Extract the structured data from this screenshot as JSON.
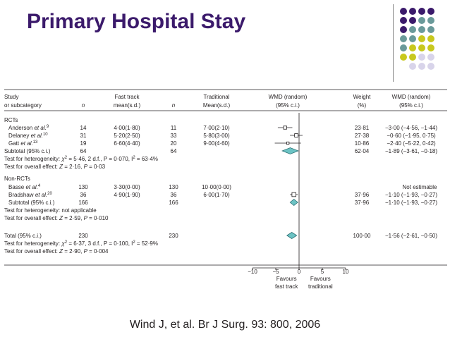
{
  "slide": {
    "title": "Primary Hospital Stay",
    "citation": "Wind J, et al.  Br J Surg.  93: 800, 2006"
  },
  "colors": {
    "title": "#3b1a6b",
    "dot_purple": "#3b1a6b",
    "dot_teal": "#6a9a9a",
    "dot_yellow": "#c8c81e",
    "dot_lavender": "#d8d4ea",
    "diamond_fill": "#6cc3c4",
    "diamond_stroke": "#2a6f73"
  },
  "decor_dots": [
    [
      "purple",
      "purple",
      "purple",
      "purple"
    ],
    [
      "purple",
      "purple",
      "teal",
      "teal"
    ],
    [
      "purple",
      "teal",
      "teal",
      "teal"
    ],
    [
      "teal",
      "teal",
      "yellow",
      "yellow"
    ],
    [
      "teal",
      "yellow",
      "yellow",
      "yellow"
    ],
    [
      "yellow",
      "yellow",
      "lavender",
      "lavender"
    ],
    [
      "",
      "lavender",
      "lavender",
      "lavender"
    ]
  ],
  "chart_data": {
    "type": "forest",
    "header": {
      "study": "Study",
      "subcategory": "or subcategory",
      "n": "n",
      "fast_track": "Fast track",
      "fast_track_sub": "mean(s.d.)",
      "n2": "n",
      "traditional": "Traditional",
      "traditional_sub": "Mean(s.d.)",
      "wmd": "WMD (random)",
      "wmd_sub": "(95% c.i.)",
      "weight": "Weight",
      "weight_sub": "(%)",
      "wmd2": "WMD (random)",
      "wmd2_sub": "(95% c.i.)"
    },
    "groups": [
      {
        "name": "RCTs",
        "studies": [
          {
            "study": "Anderson",
            "etal": "et al.",
            "ref": "9",
            "n1": "14",
            "ft": "4·00(1·80)",
            "n2": "11",
            "trad": "7·00(2·10)",
            "weight": "23·81",
            "ci_text": "−3·00 (−4·56, −1·44)",
            "est": -3.0,
            "lo": -4.56,
            "hi": -1.44
          },
          {
            "study": "Delaney",
            "etal": "et al.",
            "ref": "10",
            "n1": "31",
            "ft": "5·20(2·50)",
            "n2": "33",
            "trad": "5·80(3·00)",
            "weight": "27·38",
            "ci_text": "−0·60 (−1·95, 0·75)",
            "est": -0.6,
            "lo": -1.95,
            "hi": 0.75
          },
          {
            "study": "Gatt",
            "etal": "et al.",
            "ref": "13",
            "n1": "19",
            "ft": "6·60(4·40)",
            "n2": "20",
            "trad": "9·00(4·60)",
            "weight": "10·86",
            "ci_text": "−2·40 (−5·22, 0·42)",
            "est": -2.4,
            "lo": -5.22,
            "hi": 0.42
          }
        ],
        "subtotal": {
          "label": "Subtotal (95% c.i.)",
          "n1": "64",
          "n2": "64",
          "weight": "62·04",
          "ci_text": "−1·89 (−3·61, −0·18)",
          "est": -1.89,
          "lo": -3.61,
          "hi": -0.18
        },
        "het_prefix": "Test for heterogeneity:  ",
        "het_chi": "χ",
        "het_body": " = 5·46, 2 d.f., P = 0·070, I",
        "het_tail": " = 63·4%",
        "overall_prefix": "Test for overall effect: ",
        "overall_z": "Z",
        "overall_body": " = 2·16, ",
        "overall_p": "P",
        "overall_tail": " = 0·03"
      },
      {
        "name": "Non-RCTs",
        "studies": [
          {
            "study": "Basse",
            "etal": "et al.",
            "ref": "4",
            "n1": "130",
            "ft": "3·30(0·00)",
            "n2": "130",
            "trad": "10·00(0·00)",
            "weight": "",
            "ci_text": "Not estimable",
            "est": null,
            "lo": null,
            "hi": null
          },
          {
            "study": "Bradshaw",
            "etal": "et al.",
            "ref": "20",
            "n1": "36",
            "ft": "4·90(1·90)",
            "n2": "36",
            "trad": "6·00(1·70)",
            "weight": "37·96",
            "ci_text": "−1·10 (−1·93, −0·27)",
            "est": -1.1,
            "lo": -1.93,
            "hi": -0.27
          }
        ],
        "subtotal": {
          "label": "Subtotal (95% c.i.)",
          "n1": "166",
          "n2": "166",
          "weight": "37·96",
          "ci_text": "−1·10 (−1·93, −0·27)",
          "est": -1.1,
          "lo": -1.93,
          "hi": -0.27
        },
        "het_text": "Test for heterogeneity: not applicable",
        "overall_prefix": "Test for overall effect: ",
        "overall_z": "Z",
        "overall_body": " = 2·59, ",
        "overall_p": "P",
        "overall_tail": " = 0·010"
      }
    ],
    "total": {
      "label": "Total (95% c.i.)",
      "n1": "230",
      "n2": "230",
      "weight": "100·00",
      "ci_text": "−1·56 (−2·61, −0·50)",
      "est": -1.56,
      "lo": -2.61,
      "hi": -0.5,
      "het_prefix": "Test for heterogeneity:  ",
      "het_chi": "χ",
      "het_body": " = 6·37, 3 d.f., P = 0·100, I",
      "het_tail": " = 52·9%",
      "overall_prefix": "Test for overall effect: ",
      "overall_z": "Z",
      "overall_body": " = 2·90, ",
      "overall_p": "P",
      "overall_tail": " = 0·004"
    },
    "x_axis": {
      "ticks": [
        -10,
        -5,
        0,
        5,
        10
      ],
      "tick_labels": [
        "−10",
        "−5",
        "0",
        "5",
        "10"
      ],
      "xlim": [
        -10,
        10
      ],
      "left_label_1": "Favours",
      "left_label_2": "fast track",
      "right_label_1": "Favours",
      "right_label_2": "traditional"
    }
  }
}
